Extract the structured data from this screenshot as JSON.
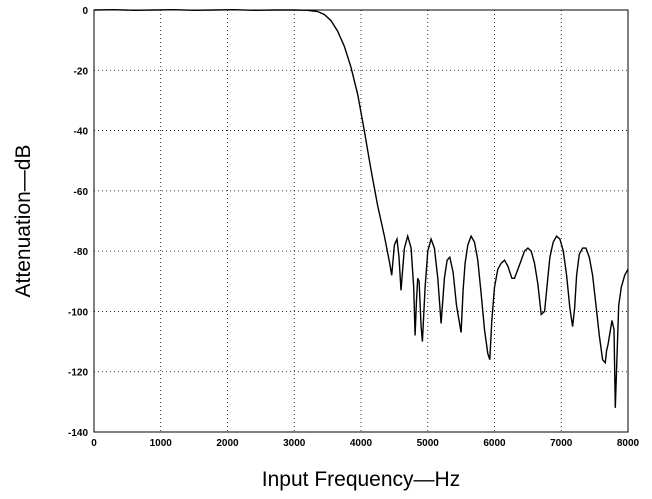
{
  "chart_data": {
    "type": "line",
    "title": "",
    "xlabel": "Input Frequency—Hz",
    "ylabel": "Attenuation—dB",
    "xlim": [
      0,
      8000
    ],
    "ylim": [
      -140,
      0
    ],
    "grid": true,
    "x_ticks": [
      0,
      1000,
      2000,
      3000,
      4000,
      5000,
      6000,
      7000,
      8000
    ],
    "y_ticks": [
      0,
      -20,
      -40,
      -60,
      -80,
      -100,
      -120,
      -140
    ],
    "series": [
      {
        "color": "#000000",
        "x": [
          0,
          300,
          600,
          900,
          1200,
          1500,
          1800,
          2100,
          2400,
          2700,
          3000,
          3200,
          3350,
          3450,
          3550,
          3650,
          3750,
          3850,
          3950,
          4050,
          4150,
          4250,
          4350,
          4430,
          4460,
          4500,
          4540,
          4570,
          4600,
          4650,
          4700,
          4750,
          4790,
          4810,
          4830,
          4850,
          4870,
          4900,
          4920,
          4960,
          5000,
          5050,
          5100,
          5150,
          5200,
          5250,
          5290,
          5330,
          5380,
          5430,
          5500,
          5530,
          5560,
          5600,
          5650,
          5700,
          5750,
          5800,
          5850,
          5900,
          5930,
          5960,
          6000,
          6050,
          6100,
          6150,
          6200,
          6260,
          6300,
          6350,
          6400,
          6450,
          6500,
          6550,
          6600,
          6650,
          6700,
          6750,
          6790,
          6830,
          6880,
          6930,
          6980,
          7030,
          7080,
          7130,
          7170,
          7200,
          7230,
          7270,
          7320,
          7370,
          7420,
          7470,
          7520,
          7570,
          7620,
          7660,
          7680,
          7700,
          7730,
          7760,
          7790,
          7810,
          7830,
          7860,
          7900,
          7950,
          8000
        ],
        "y": [
          0,
          0.1,
          -0.1,
          0,
          0.1,
          -0.1,
          0,
          0.1,
          -0.1,
          0,
          0,
          -0.1,
          -0.5,
          -1.5,
          -3.5,
          -7,
          -12,
          -19,
          -28,
          -40,
          -53,
          -65,
          -75,
          -84,
          -88,
          -78,
          -76,
          -82,
          -93,
          -79,
          -75,
          -79,
          -92,
          -108,
          -97,
          -89,
          -90,
          -105,
          -110,
          -92,
          -80,
          -76,
          -79,
          -89,
          -104,
          -89,
          -83,
          -82,
          -87,
          -98,
          -107,
          -93,
          -84,
          -78,
          -75,
          -77,
          -83,
          -94,
          -106,
          -114,
          -116,
          -103,
          -92,
          -86,
          -84,
          -83,
          -85,
          -89,
          -89,
          -86,
          -83,
          -80,
          -79,
          -80,
          -84,
          -91,
          -101,
          -100,
          -91,
          -82,
          -77,
          -75,
          -76,
          -80,
          -88,
          -99,
          -105,
          -99,
          -88,
          -81,
          -79,
          -79,
          -82,
          -88,
          -98,
          -108,
          -116,
          -117,
          -113,
          -111,
          -107,
          -103,
          -106,
          -132,
          -118,
          -98,
          -92,
          -88,
          -86
        ]
      }
    ]
  }
}
